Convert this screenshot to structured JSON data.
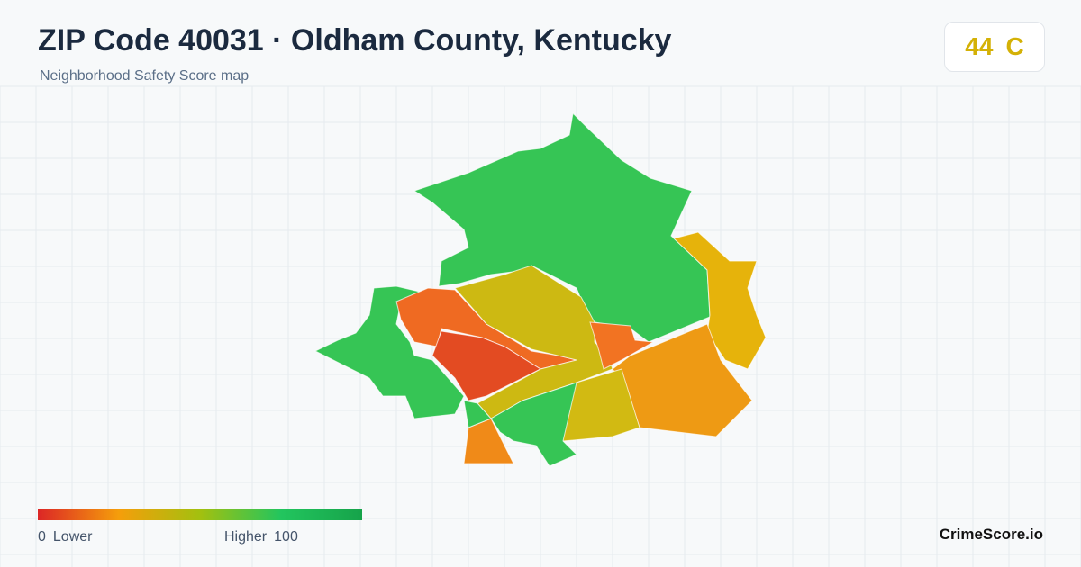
{
  "header": {
    "title": "ZIP Code 40031 · Oldham County, Kentucky",
    "subtitle": "Neighborhood Safety Score map"
  },
  "score": {
    "value": 44,
    "grade": "C"
  },
  "legend": {
    "min": 0,
    "min_label": "Lower",
    "max_label": "Higher",
    "max": 100
  },
  "brand": "CrimeScore.io"
}
